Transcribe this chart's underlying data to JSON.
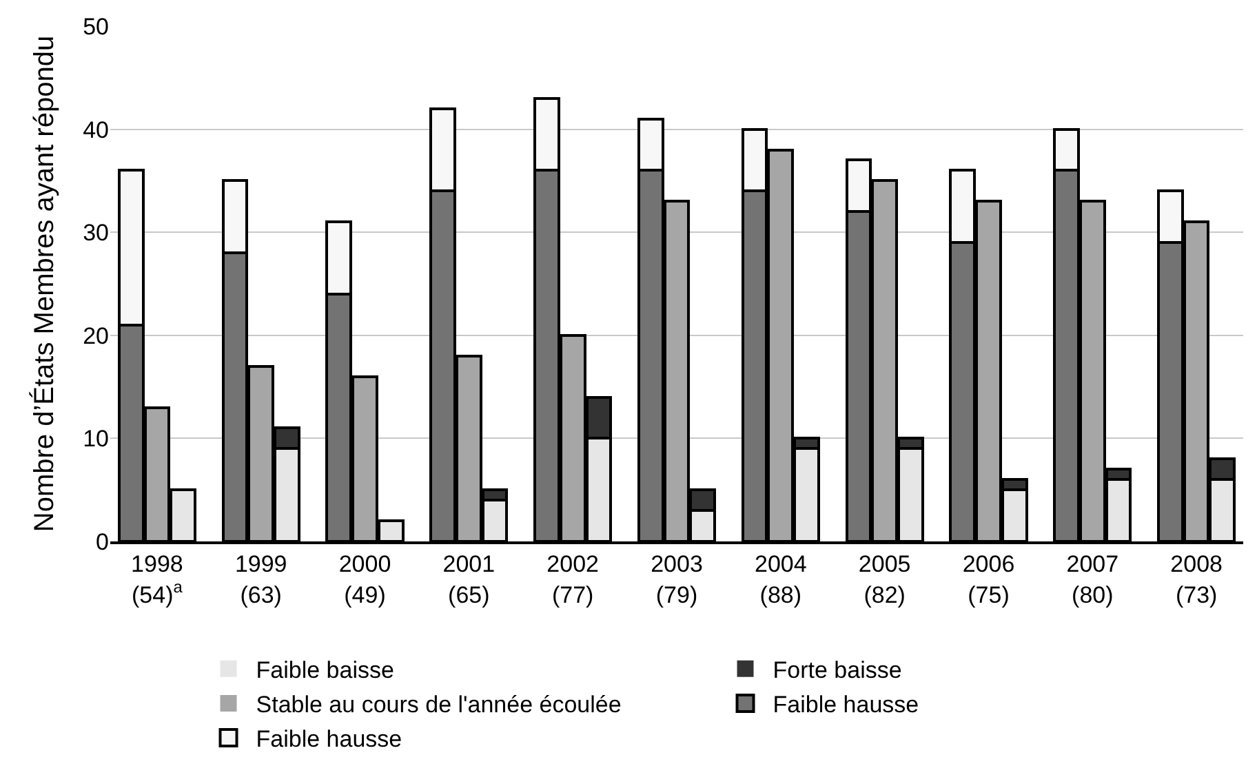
{
  "chart_data": {
    "type": "bar",
    "stacked": true,
    "ylabel": "Nombre d’États Membres ayant répondu",
    "categories": [
      null,
      "1998\n(54)$^{a}$",
      null,
      null,
      null,
      "1999\n(63)",
      null,
      null,
      null,
      "2000\n(49)",
      null,
      null,
      null,
      "2001\n(65)",
      null,
      null,
      null,
      "2002\n(77)",
      null,
      null,
      null,
      "2003\n(79)",
      null,
      null,
      null,
      "2004\n(88)",
      null,
      null,
      null,
      "2005\n(82)",
      null,
      null,
      null,
      "2006\n(75)",
      null,
      null,
      null,
      "2007\n(80)",
      null,
      null,
      null,
      "2008\n(73)",
      null
    ],
    "series": [
      {
        "name": "Faible baisse",
        "color": "#e6e6e6",
        "values": [
          null,
          null,
          5,
          null,
          null,
          null,
          9,
          null,
          null,
          null,
          2,
          null,
          null,
          null,
          4,
          null,
          null,
          null,
          10,
          null,
          null,
          null,
          3,
          null,
          null,
          null,
          9,
          null,
          null,
          null,
          9,
          null,
          null,
          null,
          5,
          null,
          null,
          null,
          6,
          null,
          null,
          null,
          6
        ]
      },
      {
        "name": "Forte baisse",
        "color": "#333333",
        "values": [
          null,
          null,
          0,
          null,
          null,
          null,
          2,
          null,
          null,
          null,
          0,
          null,
          null,
          null,
          1,
          null,
          null,
          null,
          4,
          null,
          null,
          null,
          2,
          null,
          null,
          null,
          1,
          null,
          null,
          null,
          1,
          null,
          null,
          null,
          1,
          null,
          null,
          null,
          1,
          null,
          null,
          null,
          2
        ]
      },
      {
        "name": "Stable au cours de l'année écoulée",
        "color": "#a6a6a6",
        "values": [
          null,
          13,
          null,
          null,
          null,
          17,
          null,
          null,
          null,
          16,
          null,
          null,
          null,
          18,
          null,
          null,
          null,
          20,
          null,
          null,
          null,
          33,
          null,
          null,
          null,
          38,
          null,
          null,
          null,
          35,
          null,
          null,
          null,
          33,
          null,
          null,
          null,
          33,
          null,
          null,
          null,
          31,
          null
        ]
      },
      {
        "name": "Faible hausse",
        "color": "#737373",
        "values": [
          21,
          null,
          null,
          null,
          28,
          null,
          null,
          null,
          24,
          null,
          null,
          null,
          34,
          null,
          null,
          null,
          36,
          null,
          null,
          null,
          36,
          null,
          null,
          null,
          34,
          null,
          null,
          null,
          32,
          null,
          null,
          null,
          29,
          null,
          null,
          null,
          36,
          null,
          null,
          null,
          29,
          null,
          null
        ]
      },
      {
        "name": "Faible hausse",
        "color": "#f7f7f7",
        "values": [
          15,
          null,
          null,
          null,
          7,
          null,
          null,
          null,
          7,
          null,
          null,
          null,
          8,
          null,
          null,
          null,
          7,
          null,
          null,
          null,
          5,
          null,
          null,
          null,
          6,
          null,
          null,
          null,
          5,
          null,
          null,
          null,
          7,
          null,
          null,
          null,
          4,
          null,
          null,
          null,
          5,
          null,
          null
        ]
      }
    ],
    "ylim": [
      0,
      50
    ],
    "yticks": [
      0,
      10,
      20,
      30,
      40,
      50
    ],
    "grid": "y",
    "legend": "bottom"
  }
}
